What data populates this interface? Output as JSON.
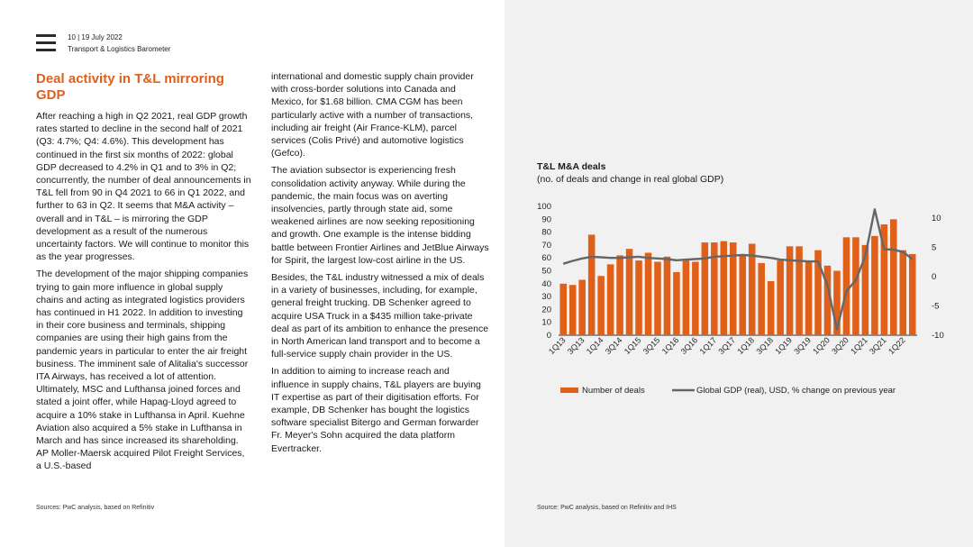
{
  "header": {
    "page_date": "10  |  19 July 2022",
    "report": "Transport & Logistics Barometer"
  },
  "article": {
    "title": "Deal activity in T&L mirroring GDP",
    "col1": [
      "After reaching a high in Q2 2021, real GDP growth rates started to decline in the second half of 2021 (Q3: 4.7%; Q4: 4.6%). This development has continued in the first six months of 2022: global GDP decreased to 4.2% in Q1 and to 3% in Q2; concurrently, the number of deal announcements in T&L fell from 90 in Q4 2021 to 66 in Q1 2022, and further to 63 in Q2. It seems that M&A activity – overall and in T&L – is mirroring the GDP development as a result of the numerous uncertainty factors. We will continue to monitor this as the year progresses.",
      "The development of the major shipping companies trying to gain more influence in global supply chains and acting as integrated logistics providers has continued in H1 2022. In addition to investing in their core business and terminals, shipping companies are using their high gains from the pandemic years in particular to enter the air freight business. The imminent sale of Alitalia's successor ITA Airways, has received a lot of attention. Ultimately, MSC and Lufthansa joined forces and stated a joint offer, while Hapag-Lloyd agreed to acquire a 10% stake in Lufthansa in April. Kuehne Aviation also acquired a 5% stake in Lufthansa in March and has since increased its shareholding. AP Moller-Maersk acquired Pilot Freight Services, a U.S.-based"
    ],
    "col2": [
      "international and domestic supply chain provider with cross-border solutions into Canada and Mexico, for $1.68 billion. CMA CGM has been particularly active with a number of transactions, including air freight (Air France-KLM), parcel services (Colis Privé) and automotive logistics (Gefco).",
      "The aviation subsector is experiencing fresh consolidation activity anyway. While during the pandemic, the main focus was on averting insolvencies, partly through state aid, some weakened airlines are now seeking repositioning and growth. One example is the intense bidding battle between Frontier Airlines and JetBlue Airways for Spirit, the largest low-cost airline in the US.",
      "Besides, the T&L industry witnessed a mix of deals in a variety of businesses, including, for example, general freight trucking. DB Schenker agreed to acquire USA Truck in a $435 million take-private deal as part of its ambition to enhance the presence in North American land transport and to become a full-service supply chain provider in the US.",
      "In addition to aiming to increase reach and influence in supply chains, T&L players are buying IT expertise as part of their digitisation efforts. For example, DB Schenker has bought the logistics software specialist Bitergo and German forwarder Fr. Meyer's Sohn acquired the data platform Evertracker."
    ],
    "source": "Sources: PwC analysis, based on Refinitiv"
  },
  "chart_panel": {
    "source": "Source: PwC analysis, based on Refinitiv and IHS"
  },
  "chart_data": {
    "type": "bar",
    "title": "T&L M&A deals",
    "subtitle": "(no. of deals and change in real global GDP)",
    "categories": [
      "1Q13",
      "2Q13",
      "3Q13",
      "4Q13",
      "1Q14",
      "2Q14",
      "3Q14",
      "4Q14",
      "1Q15",
      "2Q15",
      "3Q15",
      "4Q15",
      "1Q16",
      "2Q16",
      "3Q16",
      "4Q16",
      "1Q17",
      "2Q17",
      "3Q17",
      "4Q17",
      "1Q18",
      "2Q18",
      "3Q18",
      "4Q18",
      "1Q19",
      "2Q19",
      "3Q19",
      "4Q19",
      "1Q20",
      "2Q20",
      "3Q20",
      "4Q20",
      "1Q21",
      "2Q21",
      "3Q21",
      "4Q21",
      "1Q22",
      "2Q22"
    ],
    "tick_labels": [
      "1Q13",
      "3Q13",
      "1Q14",
      "3Q14",
      "1Q15",
      "3Q15",
      "1Q16",
      "3Q16",
      "1Q17",
      "3Q17",
      "1Q18",
      "3Q18",
      "1Q19",
      "3Q19",
      "1Q20",
      "3Q20",
      "1Q21",
      "3Q21",
      "1Q22"
    ],
    "series": [
      {
        "name": "Number of deals",
        "axis": "left",
        "color": "#e0601a",
        "values": [
          40,
          39,
          43,
          78,
          46,
          55,
          62,
          67,
          58,
          64,
          57,
          61,
          49,
          58,
          57,
          72,
          72,
          73,
          72,
          63,
          71,
          56,
          42,
          58,
          69,
          69,
          58,
          66,
          54,
          50,
          76,
          76,
          70,
          77,
          86,
          90,
          66,
          63
        ]
      },
      {
        "name": "Global GDP (real), USD, % change on previous year",
        "axis": "right",
        "color": "#666666",
        "values": [
          2.2,
          2.7,
          3.1,
          3.4,
          3.3,
          3.2,
          3.2,
          3.3,
          3.4,
          3.2,
          3.1,
          3.0,
          2.8,
          2.9,
          3.0,
          3.1,
          3.4,
          3.5,
          3.6,
          3.7,
          3.6,
          3.4,
          3.2,
          2.9,
          2.8,
          2.7,
          2.6,
          2.6,
          -1.5,
          -9.0,
          -2.5,
          -0.6,
          3.5,
          11.5,
          4.7,
          4.6,
          4.2,
          3.0
        ]
      }
    ],
    "ylim_left": [
      0,
      100
    ],
    "yticks_left": [
      0,
      10,
      20,
      30,
      40,
      50,
      60,
      70,
      80,
      90,
      100
    ],
    "ylim_right": [
      -10,
      12
    ],
    "yticks_right": [
      10,
      5,
      0,
      -5,
      -10
    ],
    "legend_position": "bottom",
    "grid": false
  }
}
